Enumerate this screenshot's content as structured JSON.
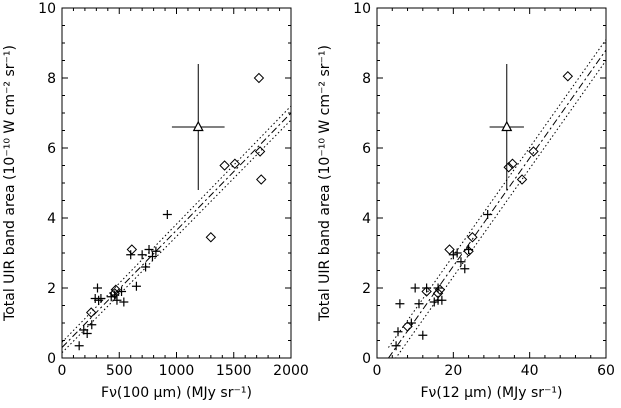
{
  "chart_data": [
    {
      "type": "scatter",
      "xlabel": "Fν(100 μm) (MJy sr⁻¹)",
      "ylabel": "Total UIR band area (10⁻¹⁰ W cm⁻² sr⁻¹)",
      "xlim": [
        0,
        2000
      ],
      "ylim": [
        0,
        10
      ],
      "xticks": [
        0,
        500,
        1000,
        1500,
        2000
      ],
      "yticks": [
        0,
        2,
        4,
        6,
        8,
        10
      ],
      "xtick_labels": [
        "0",
        "500",
        "1000",
        "1500",
        "2000"
      ],
      "ytick_labels": [
        "0",
        "2",
        "4",
        "6",
        "8",
        "10"
      ],
      "grid": false,
      "series": [
        {
          "marker": "plus",
          "x": [
            150,
            190,
            220,
            260,
            290,
            310,
            320,
            340,
            430,
            460,
            480,
            520,
            540,
            600,
            650,
            700,
            730,
            760,
            790,
            820,
            920
          ],
          "y": [
            0.35,
            0.8,
            0.7,
            0.95,
            1.7,
            2.0,
            1.65,
            1.7,
            1.75,
            1.8,
            1.65,
            1.9,
            1.6,
            2.95,
            2.05,
            2.95,
            2.6,
            3.1,
            2.9,
            3.05,
            4.1
          ]
        },
        {
          "marker": "diamond",
          "x": [
            255,
            460,
            470,
            610,
            1300,
            1420,
            1510,
            1720,
            1730,
            1740
          ],
          "y": [
            1.3,
            1.85,
            1.95,
            3.1,
            3.45,
            5.5,
            5.55,
            8.0,
            5.9,
            5.1
          ]
        },
        {
          "marker": "triangle",
          "x": [
            1190
          ],
          "y": [
            6.6
          ],
          "xerr": [
            230
          ],
          "yerr": [
            1.8
          ]
        }
      ],
      "fit": {
        "x": [
          0,
          2000
        ],
        "y": [
          0.3,
          7.0
        ]
      },
      "fit_band": {
        "upper": [
          0.45,
          7.2
        ],
        "lower": [
          0.15,
          6.8
        ]
      }
    },
    {
      "type": "scatter",
      "xlabel": "Fν(12 μm) (MJy sr⁻¹)",
      "ylabel": "Total UIR band area (10⁻¹⁰ W cm⁻² sr⁻¹)",
      "xlim": [
        0,
        60
      ],
      "ylim": [
        0,
        10
      ],
      "xticks": [
        0,
        20,
        40,
        60
      ],
      "yticks": [
        0,
        2,
        4,
        6,
        8,
        10
      ],
      "xtick_labels": [
        "0",
        "20",
        "40",
        "60"
      ],
      "ytick_labels": [
        "0",
        "2",
        "4",
        "6",
        "8",
        "10"
      ],
      "grid": false,
      "series": [
        {
          "marker": "plus",
          "x": [
            5,
            5.5,
            6,
            9,
            10,
            11,
            12,
            13,
            15,
            16,
            16,
            17,
            20,
            21,
            22,
            23,
            24,
            29
          ],
          "y": [
            0.35,
            0.75,
            1.55,
            1.0,
            2.0,
            1.55,
            0.65,
            2.0,
            1.6,
            1.65,
            2.0,
            1.65,
            2.95,
            3.0,
            2.75,
            2.55,
            3.1,
            4.1
          ]
        },
        {
          "marker": "diamond",
          "x": [
            8,
            13,
            16,
            16.5,
            19,
            24,
            25,
            34.5,
            35.5,
            38,
            41,
            50
          ],
          "y": [
            0.9,
            1.9,
            1.85,
            1.95,
            3.1,
            3.05,
            3.45,
            5.45,
            5.55,
            5.1,
            5.9,
            8.05
          ]
        },
        {
          "marker": "triangle",
          "x": [
            34
          ],
          "y": [
            6.6
          ],
          "xerr": [
            4.5
          ],
          "yerr": [
            1.8
          ]
        }
      ],
      "fit": {
        "x": [
          3,
          60
        ],
        "y": [
          0,
          8.8
        ]
      },
      "fit_band": {
        "upper": [
          0.3,
          9.1
        ],
        "lower": [
          -0.3,
          8.5
        ]
      }
    }
  ]
}
